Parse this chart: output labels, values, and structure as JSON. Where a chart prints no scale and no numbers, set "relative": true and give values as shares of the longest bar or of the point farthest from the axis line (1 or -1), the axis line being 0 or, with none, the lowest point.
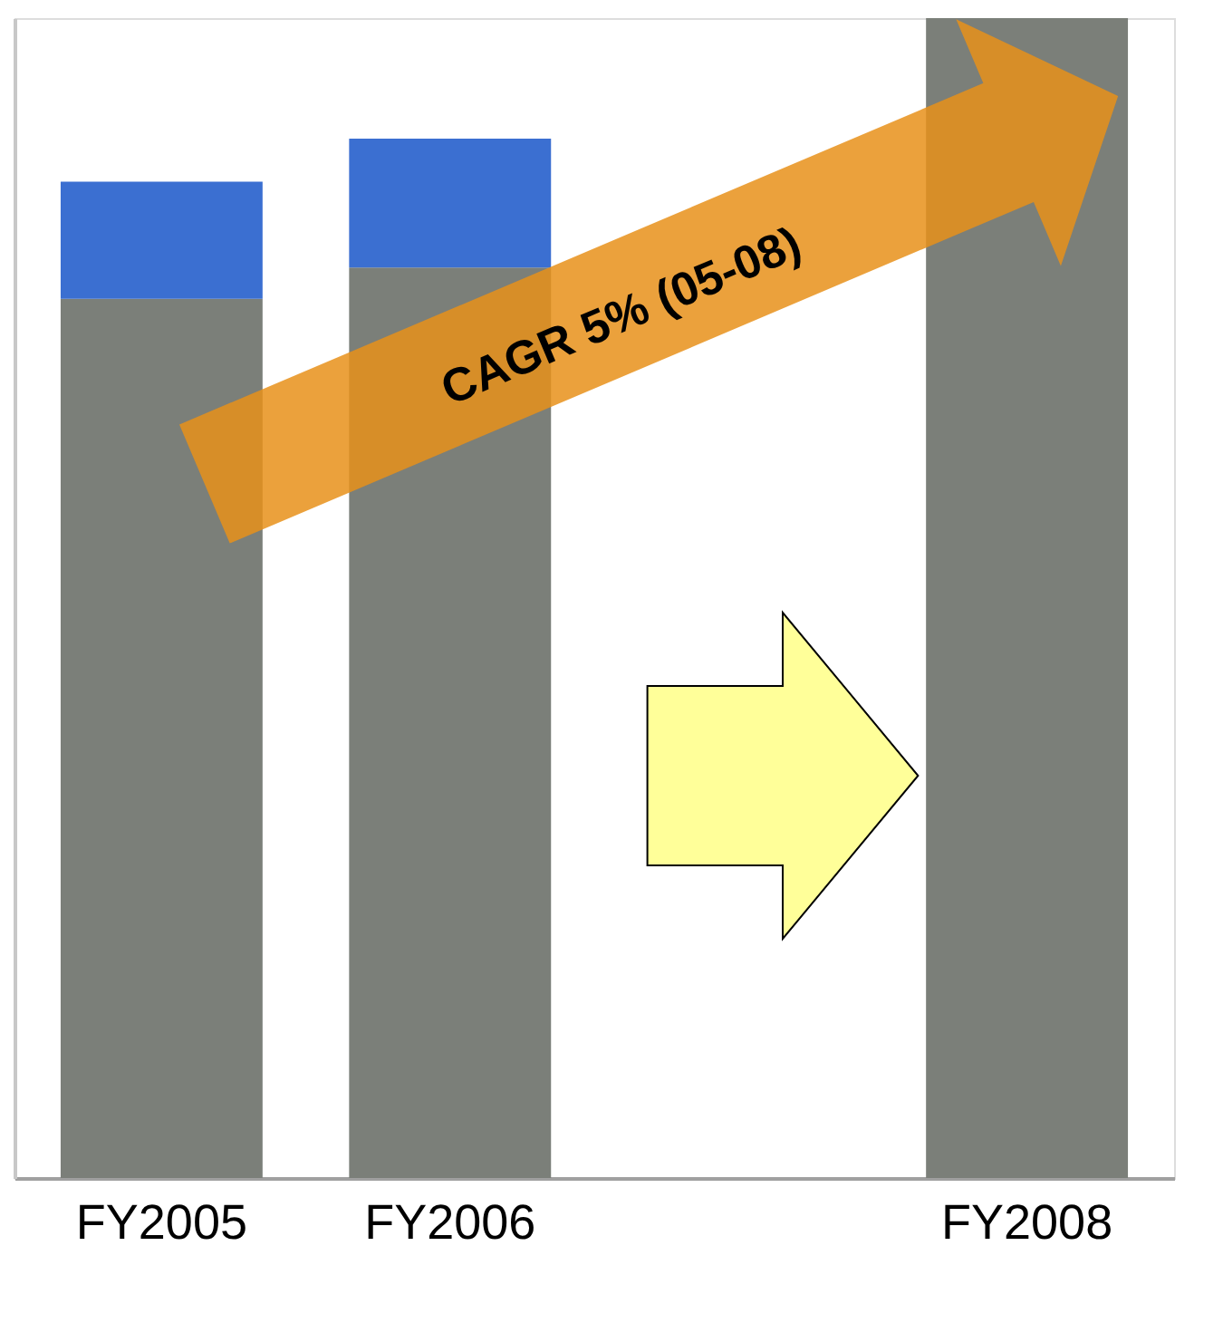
{
  "chart_data": {
    "type": "bar",
    "relative": true,
    "stacked": true,
    "legend": false,
    "grid": false,
    "categories": [
      "FY2005",
      "FY2006",
      null,
      "FY2008"
    ],
    "series": [
      {
        "color": "#7b7f79",
        "values": [
          0.758,
          0.785,
          null,
          1
        ]
      },
      {
        "color": "#3b6fd1",
        "values": [
          0.101,
          0.111,
          null,
          null
        ]
      }
    ],
    "annotations": [
      "CAGR 5% (05-08)"
    ]
  }
}
